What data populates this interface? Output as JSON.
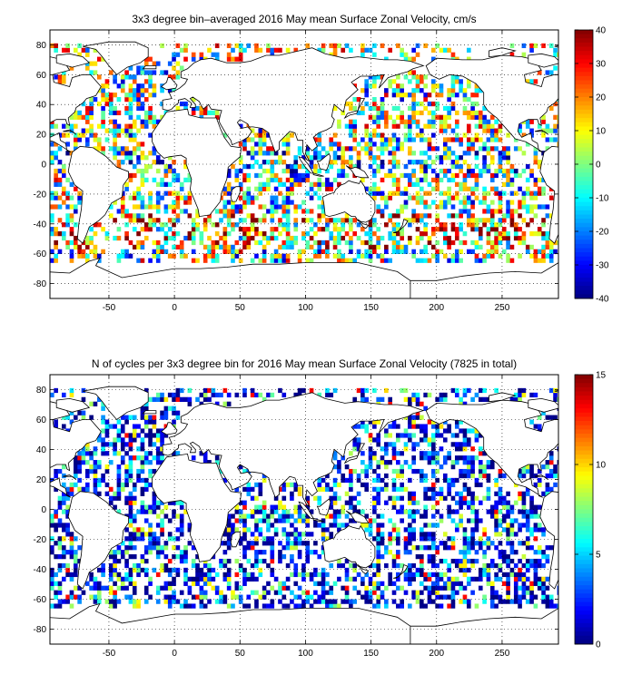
{
  "chart_data": [
    {
      "type": "heatmap",
      "title": "3x3 degree bin–averaged 2016 May mean Surface Zonal Velocity, cm/s",
      "xlim": [
        -95,
        293
      ],
      "ylim": [
        -90,
        90
      ],
      "x_ticks": [
        -50,
        0,
        50,
        100,
        150,
        200,
        250
      ],
      "y_ticks": [
        80,
        60,
        40,
        20,
        0,
        -20,
        -40,
        -60,
        -80
      ],
      "bin_size_deg": 3,
      "grid": true,
      "colorbar": {
        "min": -40,
        "max": 40,
        "ticks": [
          40,
          30,
          20,
          10,
          0,
          -10,
          -20,
          -30,
          -40
        ],
        "colormap": "jet"
      }
    },
    {
      "type": "heatmap",
      "title": "N of cycles per 3x3 degree bin for 2016 May mean Surface Zonal Velocity (7825 in total)",
      "xlim": [
        -95,
        293
      ],
      "ylim": [
        -90,
        90
      ],
      "x_ticks": [
        -50,
        0,
        50,
        100,
        150,
        200,
        250
      ],
      "y_ticks": [
        80,
        60,
        40,
        20,
        0,
        -20,
        -40,
        -60,
        -80
      ],
      "bin_size_deg": 3,
      "grid": true,
      "total_cycles": 7825,
      "colorbar": {
        "min": 0,
        "max": 15,
        "ticks": [
          15,
          10,
          5,
          0
        ],
        "colormap": "jet"
      }
    }
  ]
}
